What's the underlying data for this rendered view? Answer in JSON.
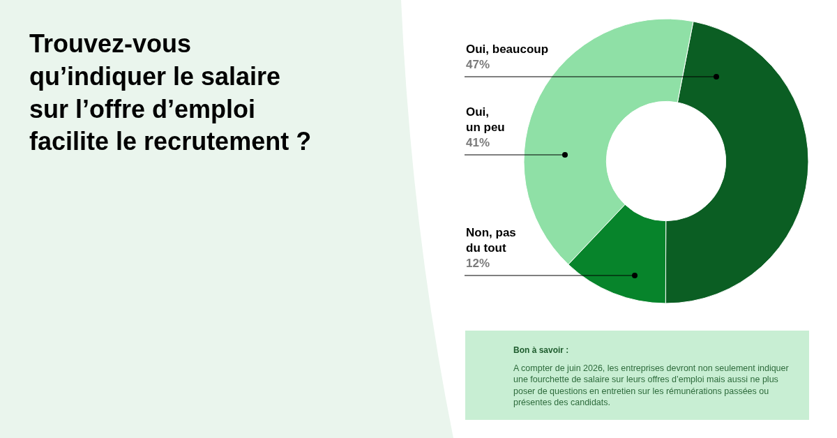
{
  "chart_data": {
    "type": "donut",
    "title": "Trouvez-vous\nqu’indiquer le salaire\nsur l’offre d’emploi\nfacilite le recrutement ?",
    "categories": [
      "Oui, beaucoup",
      "Oui,\nun peu",
      "Non, pas\ndu tout"
    ],
    "values": [
      47,
      41,
      12
    ],
    "colors": [
      "#0b5e23",
      "#8fe0a6",
      "#07842b"
    ],
    "value_labels": [
      "47%",
      "41%",
      "12%"
    ],
    "annotations": [
      "Bon à savoir :",
      "A compter de juin 2026, les entreprises devront non seulement indiquer une fourchette de salaire sur leurs offres d’emploi mais aussi ne plus poser de questions en entretien sur les rémunérations passées ou présentes des candidats."
    ],
    "legend": false
  }
}
